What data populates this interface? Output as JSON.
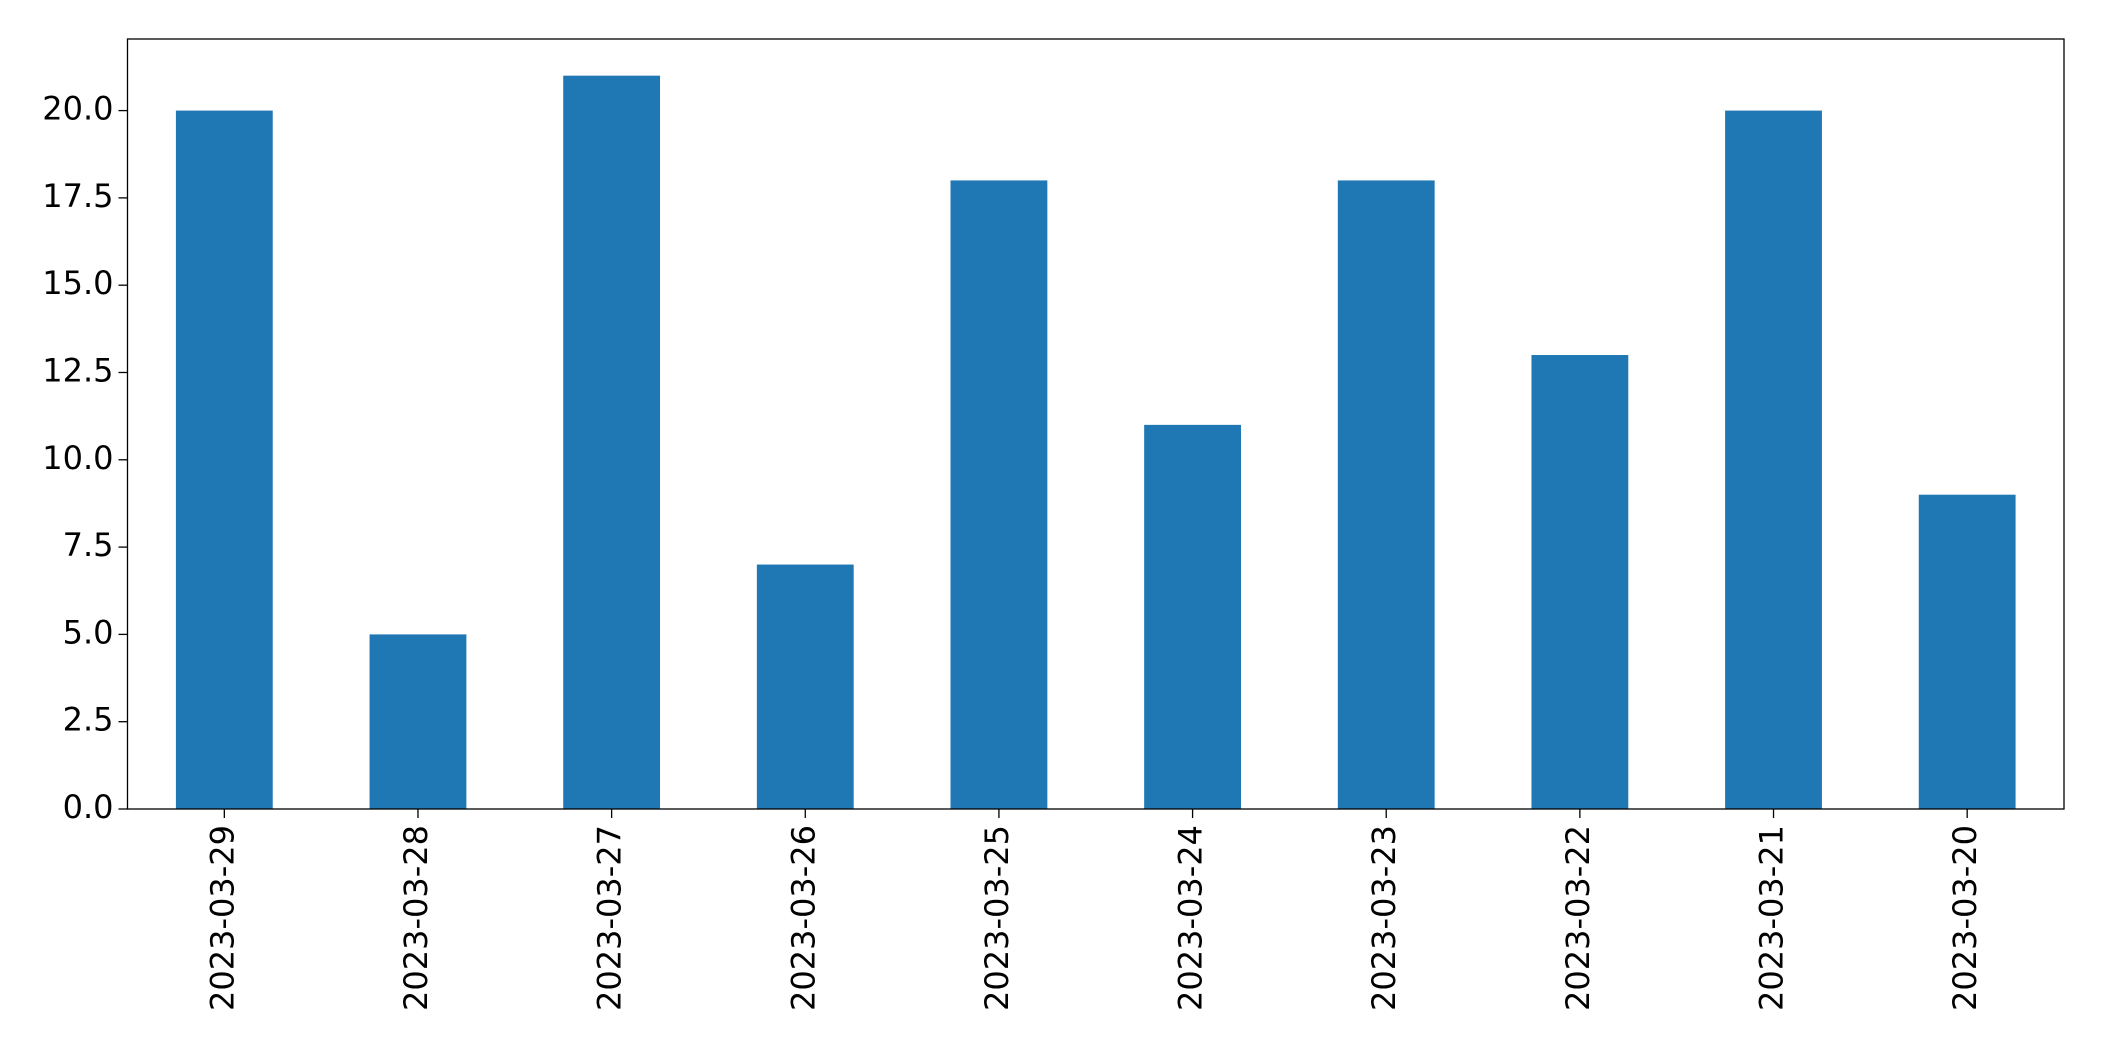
{
  "chart_data": {
    "type": "bar",
    "categories": [
      "2023-03-29",
      "2023-03-28",
      "2023-03-27",
      "2023-03-26",
      "2023-03-25",
      "2023-03-24",
      "2023-03-23",
      "2023-03-22",
      "2023-03-21",
      "2023-03-20"
    ],
    "values": [
      20,
      5,
      21,
      7,
      18,
      11,
      18,
      13,
      20,
      9
    ],
    "color": "#1f77b4",
    "ylim": [
      0,
      22.05
    ],
    "yticks": [
      {
        "value": 0,
        "label": "0.0"
      },
      2.5,
      {
        "value": 5,
        "label": "5.0"
      },
      7.5,
      {
        "value": 10,
        "label": "10.0"
      },
      12.5,
      {
        "value": 15,
        "label": "15.0"
      },
      17.5,
      {
        "value": 20,
        "label": "20.0"
      }
    ],
    "grid": false
  }
}
